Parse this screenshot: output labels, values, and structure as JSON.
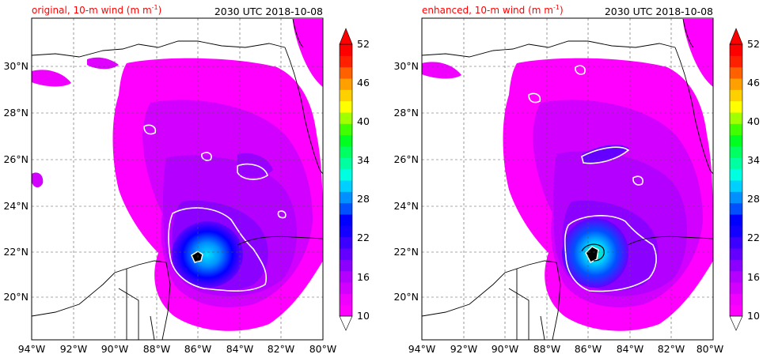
{
  "panels": [
    {
      "title": "original, 10-m wind (m m",
      "title_sup": "-1",
      "title_end": ")",
      "timestamp": "2030 UTC 2018-10-08"
    },
    {
      "title": "enhanced, 10-m wind (m m",
      "title_sup": "-1",
      "title_end": ")",
      "timestamp": "2030 UTC 2018-10-08"
    }
  ],
  "lon_labels": [
    "94°W",
    "92°W",
    "90°W",
    "88°W",
    "86°W",
    "84°W",
    "82°W",
    "80°W"
  ],
  "lat_labels": [
    "30°N",
    "28°N",
    "26°N",
    "24°N",
    "22°N",
    "20°N"
  ],
  "colorbar": {
    "labels": [
      "52",
      "46",
      "40",
      "34",
      "28",
      "22",
      "16",
      "10"
    ],
    "colors": [
      "#ff00ff",
      "#f000ff",
      "#d200ff",
      "#b400ff",
      "#8c00ff",
      "#6400ff",
      "#3c00ff",
      "#1400ff",
      "#0000ff",
      "#0050ff",
      "#0090ff",
      "#00d0ff",
      "#00ffe0",
      "#00ffa0",
      "#00ff60",
      "#00ff20",
      "#40ff00",
      "#a0ff00",
      "#ffff00",
      "#ffd000",
      "#ffa000",
      "#ff6000",
      "#ff2000",
      "#ff0000"
    ],
    "over_color": "#ff0000"
  },
  "colors": {
    "title_red": "#ff0000",
    "ocean_low": "#ff00ff",
    "ocean_mid": "#b400ff",
    "core": "#0000ff",
    "eye": "#00e0ff",
    "contour": "#ffffff",
    "coast": "#000000",
    "grid": "#555555"
  }
}
